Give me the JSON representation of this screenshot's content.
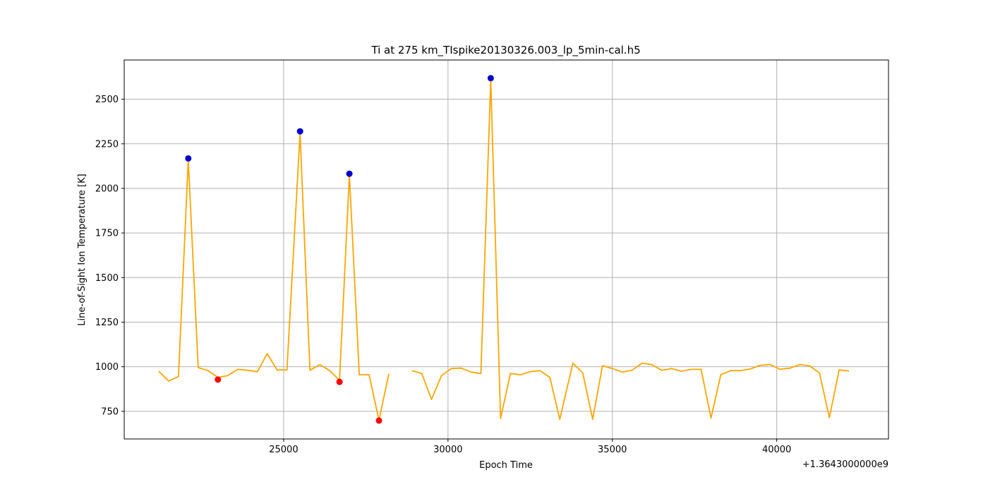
{
  "chart_data": {
    "type": "line",
    "title": "Ti at 275 km_TIspike20130326.003_lp_5min-cal.h5",
    "xlabel": "Epoch Time",
    "ylabel": "Line-of-Sight Ion Temperature [K]",
    "x_offset_label": "+1.3643000000e9",
    "xlim": [
      20150,
      43400
    ],
    "ylim": [
      595,
      2720
    ],
    "xticks": [
      25000,
      30000,
      35000,
      40000
    ],
    "yticks": [
      750,
      1000,
      1250,
      1500,
      1750,
      2000,
      2250,
      2500
    ],
    "grid": true,
    "line_color": "#ffa500",
    "series": [
      {
        "segments": [
          [
            [
              21200,
              975
            ],
            [
              21500,
              920
            ],
            [
              21800,
              945
            ],
            [
              22100,
              2160
            ],
            [
              22400,
              995
            ],
            [
              22700,
              978
            ],
            [
              23000,
              940
            ],
            [
              23300,
              950
            ],
            [
              23600,
              985
            ],
            [
              23900,
              980
            ],
            [
              24200,
              972
            ],
            [
              24500,
              1073
            ],
            [
              24800,
              982
            ],
            [
              25100,
              982
            ],
            [
              25500,
              2310
            ],
            [
              25800,
              980
            ],
            [
              26100,
              1012
            ],
            [
              26400,
              978
            ],
            [
              26700,
              925
            ],
            [
              27000,
              2075
            ],
            [
              27300,
              955
            ],
            [
              27600,
              955
            ],
            [
              27900,
              700
            ],
            [
              28200,
              960
            ]
          ],
          [
            [
              28900,
              978
            ],
            [
              29200,
              962
            ],
            [
              29500,
              817
            ],
            [
              29800,
              950
            ],
            [
              30100,
              990
            ],
            [
              30400,
              992
            ],
            [
              30700,
              970
            ],
            [
              31000,
              962
            ],
            [
              31300,
              2610
            ],
            [
              31600,
              710
            ],
            [
              31900,
              962
            ],
            [
              32200,
              955
            ],
            [
              32500,
              972
            ],
            [
              32800,
              978
            ],
            [
              33100,
              940
            ],
            [
              33400,
              705
            ],
            [
              33800,
              1020
            ],
            [
              34100,
              965
            ],
            [
              34400,
              705
            ],
            [
              34700,
              1005
            ],
            [
              35000,
              990
            ],
            [
              35300,
              970
            ],
            [
              35600,
              980
            ],
            [
              35900,
              1020
            ],
            [
              36200,
              1012
            ],
            [
              36500,
              980
            ],
            [
              36800,
              990
            ],
            [
              37100,
              975
            ],
            [
              37400,
              985
            ],
            [
              37700,
              985
            ],
            [
              38000,
              712
            ],
            [
              38300,
              955
            ],
            [
              38600,
              978
            ],
            [
              38900,
              978
            ],
            [
              39200,
              988
            ],
            [
              39500,
              1008
            ],
            [
              39800,
              1012
            ],
            [
              40100,
              985
            ],
            [
              40400,
              992
            ],
            [
              40700,
              1012
            ],
            [
              41000,
              1005
            ],
            [
              41300,
              965
            ],
            [
              41600,
              715
            ],
            [
              41900,
              982
            ],
            [
              42200,
              976
            ]
          ]
        ]
      }
    ],
    "peaks": {
      "color": "#0000cd",
      "points": [
        [
          22100,
          2168
        ],
        [
          25500,
          2320
        ],
        [
          27000,
          2082
        ],
        [
          31300,
          2618
        ]
      ]
    },
    "troughs": {
      "color": "#ff0000",
      "points": [
        [
          23000,
          928
        ],
        [
          26700,
          915
        ],
        [
          27900,
          698
        ]
      ]
    }
  }
}
